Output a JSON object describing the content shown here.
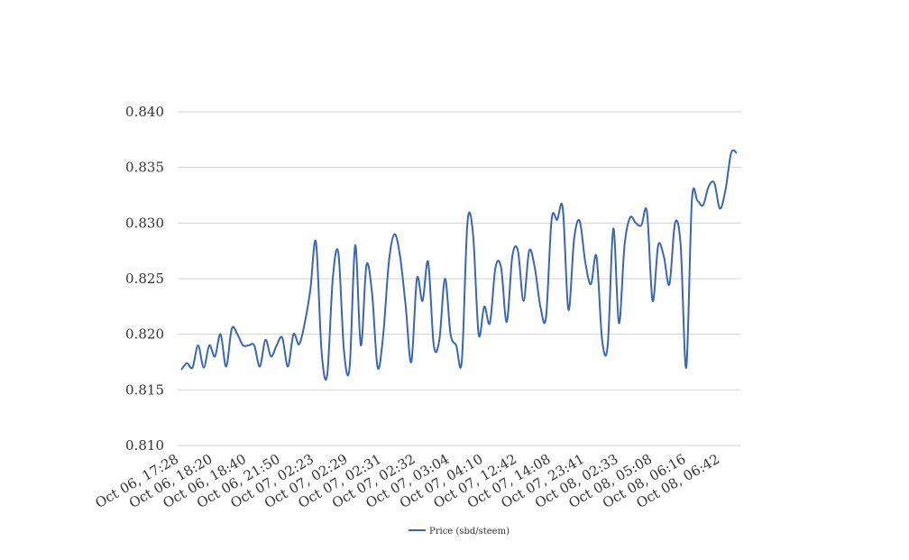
{
  "chart_data": {
    "type": "line",
    "title": "",
    "xlabel": "",
    "ylabel": "",
    "ylim": [
      0.81,
      0.84
    ],
    "yticks": [
      "0.810",
      "0.815",
      "0.820",
      "0.825",
      "0.830",
      "0.835",
      "0.840"
    ],
    "grid": true,
    "legend_position": "bottom-center",
    "xtick_labels": [
      "Oct 06, 17:28",
      "Oct 06, 18:20",
      "Oct 06, 18:40",
      "Oct 06, 21:50",
      "Oct 07, 02:23",
      "Oct 07, 02:29",
      "Oct 07, 02:31",
      "Oct 07, 02:32",
      "Oct 07, 03:04",
      "Oct 07, 04:10",
      "Oct 07, 12:42",
      "Oct 07, 14:08",
      "Oct 07, 23:41",
      "Oct 08, 02:33",
      "Oct 08, 05:08",
      "Oct 08, 06:16",
      "Oct 08, 06:42"
    ],
    "series": [
      {
        "name": "Price (sbd/steem)",
        "color": "#3a66b4",
        "values": [
          0.8168,
          0.8174,
          0.817,
          0.819,
          0.817,
          0.819,
          0.818,
          0.82,
          0.8171,
          0.8205,
          0.82,
          0.819,
          0.819,
          0.819,
          0.8171,
          0.8195,
          0.818,
          0.819,
          0.8197,
          0.8171,
          0.82,
          0.8191,
          0.821,
          0.824,
          0.8283,
          0.8185,
          0.8163,
          0.825,
          0.8273,
          0.8185,
          0.817,
          0.828,
          0.819,
          0.8262,
          0.8237,
          0.817,
          0.82,
          0.8265,
          0.829,
          0.827,
          0.8225,
          0.8175,
          0.825,
          0.823,
          0.8265,
          0.819,
          0.8195,
          0.825,
          0.82,
          0.819,
          0.8176,
          0.83,
          0.829,
          0.82,
          0.8225,
          0.821,
          0.826,
          0.826,
          0.8211,
          0.827,
          0.8275,
          0.823,
          0.8275,
          0.826,
          0.8225,
          0.8215,
          0.8303,
          0.8303,
          0.8313,
          0.8222,
          0.8285,
          0.8302,
          0.8265,
          0.8245,
          0.827,
          0.8195,
          0.819,
          0.8295,
          0.821,
          0.828,
          0.8305,
          0.83,
          0.8298,
          0.831,
          0.823,
          0.828,
          0.827,
          0.8245,
          0.83,
          0.828,
          0.817,
          0.832,
          0.832,
          0.8316,
          0.8333,
          0.8336,
          0.8313,
          0.833,
          0.8363,
          0.8363
        ]
      }
    ]
  }
}
